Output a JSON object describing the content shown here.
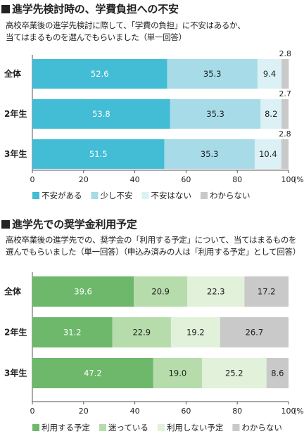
{
  "chart_data": [
    {
      "type": "bar",
      "orientation": "horizontal",
      "stacked": true,
      "title": "進学先検討時の、学費負担への不安",
      "subtitle_lines": [
        "高校卒業後の進学先検討に際して、「学費の負担」に不安はあるか、",
        "当てはまるものを選んでもらいました（単一回答）"
      ],
      "categories": [
        "全体",
        "2年生",
        "3年生"
      ],
      "series": [
        {
          "name": "不安がある",
          "color": "#43bcd5",
          "values": [
            52.6,
            53.8,
            51.5
          ]
        },
        {
          "name": "少し不安",
          "color": "#a6dbe7",
          "values": [
            35.3,
            35.3,
            35.3
          ]
        },
        {
          "name": "不安はない",
          "color": "#dcf1f6",
          "values": [
            9.4,
            8.2,
            10.4
          ]
        },
        {
          "name": "わからない",
          "color": "#c9c9c9",
          "values": [
            2.8,
            2.7,
            2.8
          ]
        }
      ],
      "xlim": [
        0,
        100
      ],
      "xticks": [
        "0",
        "20",
        "40",
        "60",
        "80",
        "100"
      ],
      "xunit": "(%)",
      "legend_position": "bottom-left"
    },
    {
      "type": "bar",
      "orientation": "horizontal",
      "stacked": true,
      "title": "進学先での奨学金利用予定",
      "subtitle_lines": [
        "高校卒業後の進学先での、奨学金の「利用する予定」について、当てはまるものを",
        "選んでもらいました（単一回答）（申込み済みの人は「利用する予定」として回答）"
      ],
      "categories": [
        "全体",
        "2年生",
        "3年生"
      ],
      "series": [
        {
          "name": "利用する予定",
          "color": "#6db86b",
          "values": [
            39.6,
            31.2,
            47.2
          ]
        },
        {
          "name": "迷っている",
          "color": "#b5dcaa",
          "values": [
            20.9,
            22.9,
            19.0
          ]
        },
        {
          "name": "利用しない予定",
          "color": "#e1f1da",
          "values": [
            22.3,
            19.2,
            25.2
          ]
        },
        {
          "name": "わからない",
          "color": "#c9c9c9",
          "values": [
            17.2,
            26.7,
            8.6
          ]
        }
      ],
      "xlim": [
        0,
        100
      ],
      "xticks": [
        "0",
        "20",
        "40",
        "60",
        "80",
        "100"
      ],
      "xunit": "(%)",
      "legend_position": "bottom-left"
    }
  ]
}
